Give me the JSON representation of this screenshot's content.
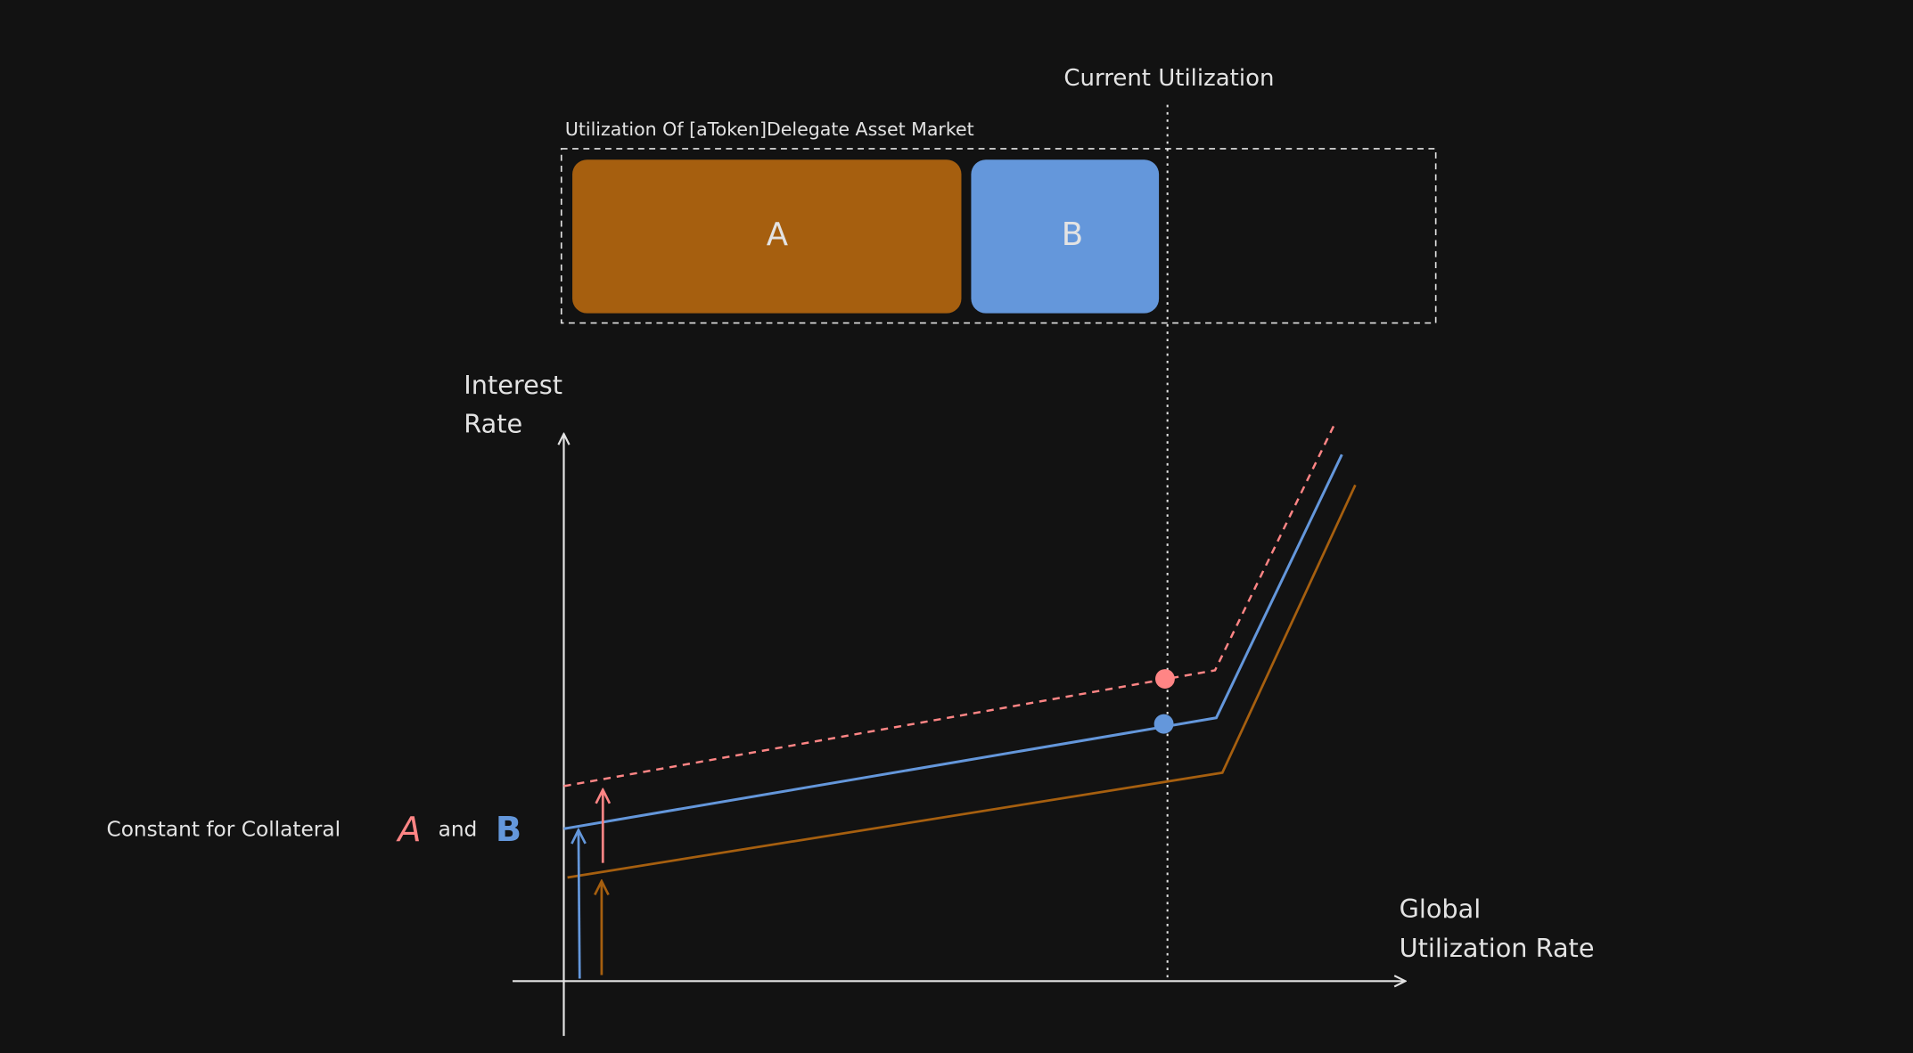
{
  "colors": {
    "background": "#121212",
    "collateral_a": "#a65f0f",
    "collateral_b": "#6497db",
    "highlight": "#ff8585",
    "foreground": "#e3e3e3"
  },
  "utilization_bar": {
    "title": "Utilization Of [aToken]Delegate Asset Market",
    "segment_a_label": "A",
    "segment_b_label": "B"
  },
  "current_utilization_label": "Current Utilization",
  "axes": {
    "y_label_line1": "Interest",
    "y_label_line2": "Rate",
    "x_label_line1": "Global",
    "x_label_line2": "Utilization Rate"
  },
  "annotation": {
    "prefix": "Constant for Collateral",
    "a": "A",
    "conjunction": "and",
    "b": "B"
  }
}
